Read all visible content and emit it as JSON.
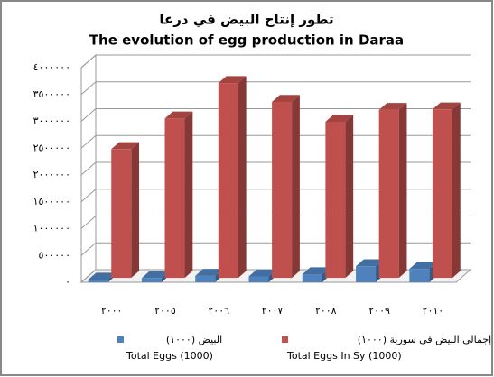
{
  "chart_data": {
    "type": "bar3d",
    "title": "تطور إنتاج البيض في درعا",
    "subtitle": "The evolution of egg production in Daraa",
    "categories": [
      "٢٠٠٠",
      "٢٠٠٥",
      "٢٠٠٦",
      "٢٠٠٧",
      "٢٠٠٨",
      "٢٠٠٩",
      "٢٠١٠"
    ],
    "series": [
      {
        "name": "البيض (١٠٠٠)",
        "name_en": "Total Eggs (1000)",
        "color": "#4f81bd",
        "values": [
          50000,
          80000,
          120000,
          110000,
          150000,
          300000,
          250000
        ]
      },
      {
        "name": "إجمالي البيض في سورية (١٠٠٠)",
        "name_en": "Total Eggs In Sy (1000)",
        "color": "#c0504d",
        "values": [
          2400000,
          2970000,
          3630000,
          3280000,
          2910000,
          3130000,
          3140000
        ]
      }
    ],
    "ylim": [
      0,
      4000000
    ],
    "yticks": [
      {
        "value": 0,
        "label": "٠"
      },
      {
        "value": 500000,
        "label": "٥٠٠٠٠٠"
      },
      {
        "value": 1000000,
        "label": "١٠٠٠٠٠٠"
      },
      {
        "value": 1500000,
        "label": "١٥٠٠٠٠٠"
      },
      {
        "value": 2000000,
        "label": "٢٠٠٠٠٠٠"
      },
      {
        "value": 2500000,
        "label": "٢٥٠٠٠٠٠"
      },
      {
        "value": 3000000,
        "label": "٣٠٠٠٠٠٠"
      },
      {
        "value": 3500000,
        "label": "٣٥٠٠٠٠٠"
      },
      {
        "value": 4000000,
        "label": "٤٠٠٠٠٠٠"
      }
    ],
    "grid": true
  }
}
